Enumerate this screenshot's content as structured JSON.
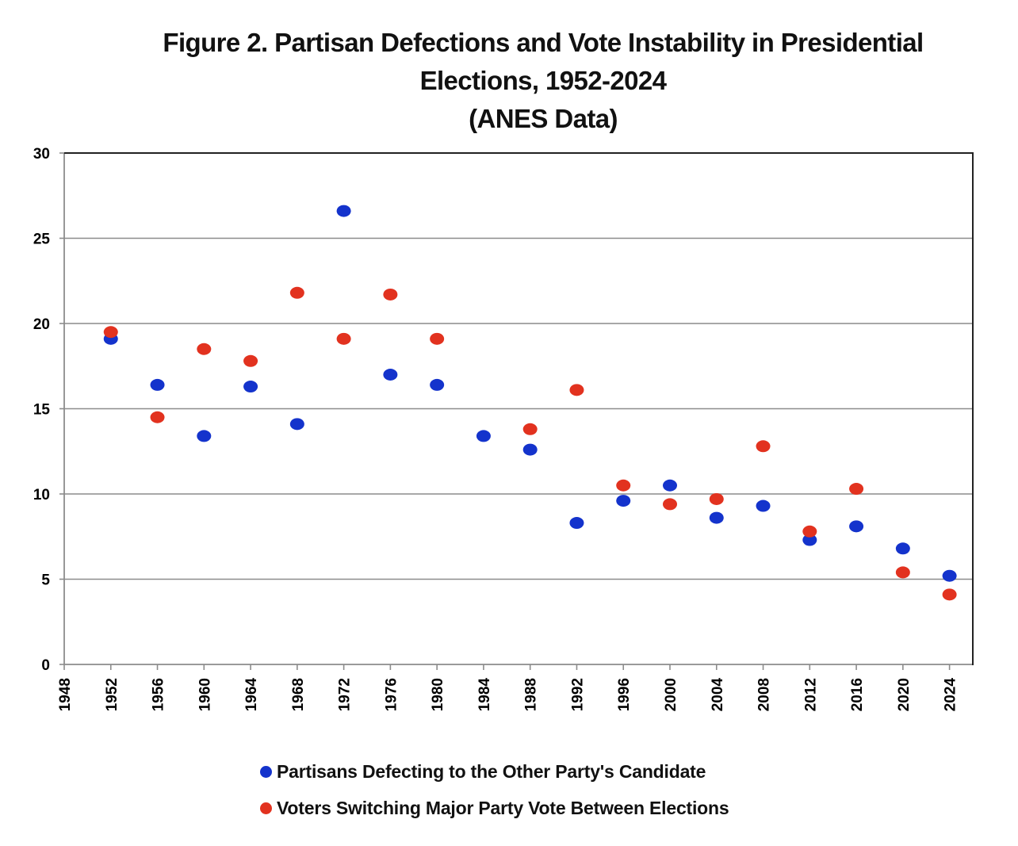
{
  "chart_data": {
    "type": "scatter",
    "title": [
      "Figure 2.  Partisan Defections and Vote Instability in Presidential",
      "Elections, 1952-2024",
      "(ANES Data)"
    ],
    "xlabel": "",
    "ylabel": "",
    "xlim": [
      1948,
      2026
    ],
    "ylim": [
      0,
      30
    ],
    "x_ticks": [
      1948,
      1952,
      1956,
      1960,
      1964,
      1968,
      1972,
      1976,
      1980,
      1984,
      1988,
      1992,
      1996,
      2000,
      2004,
      2008,
      2012,
      2016,
      2020,
      2024
    ],
    "x_tick_labels": [
      "1948",
      "1952",
      "1956",
      "1960",
      "1964",
      "1968",
      "1972",
      "1976",
      "1980",
      "1984",
      "1988",
      "1992",
      "1996",
      "2000",
      "2004",
      "2008",
      "2012",
      "2016",
      "2020",
      "2024"
    ],
    "y_ticks": [
      0,
      5,
      10,
      15,
      20,
      25,
      30
    ],
    "y_tick_labels": [
      "0",
      "5",
      "10",
      "15",
      "20",
      "25",
      "30"
    ],
    "grid": "horizontal",
    "legend_position": "bottom",
    "series": [
      {
        "name": "Partisans Defecting to the Other Party's Candidate",
        "color": "#1433cc",
        "points": [
          {
            "x": 1952,
            "y": 19.1
          },
          {
            "x": 1956,
            "y": 16.4
          },
          {
            "x": 1960,
            "y": 13.4
          },
          {
            "x": 1964,
            "y": 16.3
          },
          {
            "x": 1968,
            "y": 14.1
          },
          {
            "x": 1972,
            "y": 26.6
          },
          {
            "x": 1976,
            "y": 17.0
          },
          {
            "x": 1980,
            "y": 16.4
          },
          {
            "x": 1984,
            "y": 13.4
          },
          {
            "x": 1988,
            "y": 12.6
          },
          {
            "x": 1992,
            "y": 8.3
          },
          {
            "x": 1996,
            "y": 9.6
          },
          {
            "x": 2000,
            "y": 10.5
          },
          {
            "x": 2004,
            "y": 8.6
          },
          {
            "x": 2008,
            "y": 9.3
          },
          {
            "x": 2012,
            "y": 7.3
          },
          {
            "x": 2016,
            "y": 8.1
          },
          {
            "x": 2020,
            "y": 6.8
          },
          {
            "x": 2024,
            "y": 5.2
          }
        ]
      },
      {
        "name": "Voters Switching Major Party Vote Between Elections",
        "color": "#e2321f",
        "points": [
          {
            "x": 1952,
            "y": 19.5
          },
          {
            "x": 1956,
            "y": 14.5
          },
          {
            "x": 1960,
            "y": 18.5
          },
          {
            "x": 1964,
            "y": 17.8
          },
          {
            "x": 1968,
            "y": 21.8
          },
          {
            "x": 1972,
            "y": 19.1
          },
          {
            "x": 1976,
            "y": 21.7
          },
          {
            "x": 1980,
            "y": 19.1
          },
          {
            "x": 1988,
            "y": 13.8
          },
          {
            "x": 1992,
            "y": 16.1
          },
          {
            "x": 1996,
            "y": 10.5
          },
          {
            "x": 2000,
            "y": 9.4
          },
          {
            "x": 2004,
            "y": 9.7
          },
          {
            "x": 2008,
            "y": 12.8
          },
          {
            "x": 2012,
            "y": 7.8
          },
          {
            "x": 2016,
            "y": 10.3
          },
          {
            "x": 2020,
            "y": 5.4
          },
          {
            "x": 2024,
            "y": 4.1
          }
        ]
      }
    ]
  }
}
